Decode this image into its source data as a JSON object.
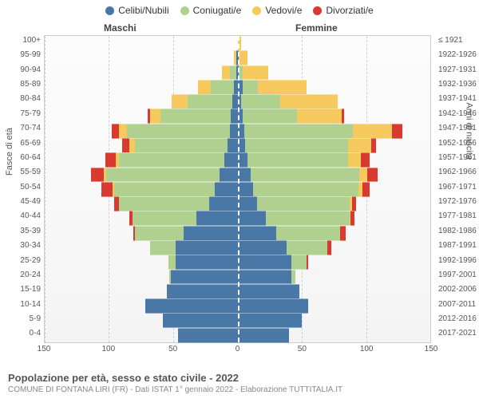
{
  "legend": [
    {
      "label": "Celibi/Nubili",
      "color": "#4a78a6"
    },
    {
      "label": "Coniugati/e",
      "color": "#b0d090"
    },
    {
      "label": "Vedovi/e",
      "color": "#f5c95e"
    },
    {
      "label": "Divorziati/e",
      "color": "#d83a2f"
    }
  ],
  "headers": {
    "left": "Maschi",
    "right": "Femmine"
  },
  "axis": {
    "left_label": "Fasce di età",
    "right_label": "Anni di nascita",
    "xlim": 150,
    "xticks": [
      150,
      100,
      50,
      0,
      50,
      100,
      150
    ]
  },
  "title": "Popolazione per età, sesso e stato civile - 2022",
  "subtitle": "COMUNE DI FONTANA LIRI (FR) - Dati ISTAT 1° gennaio 2022 - Elaborazione TUTTITALIA.IT",
  "colors": {
    "celibi": "#4a78a6",
    "coniugati": "#b0d090",
    "vedovi": "#f5c95e",
    "divorziati": "#d83a2f",
    "grid": "#d0d0d0",
    "zero": "#ffffff"
  },
  "rows": [
    {
      "age": "100+",
      "year": "≤ 1921",
      "m": {
        "c": 0,
        "co": 0,
        "v": 0,
        "d": 0
      },
      "f": {
        "c": 0,
        "co": 0,
        "v": 3,
        "d": 0
      }
    },
    {
      "age": "95-99",
      "year": "1922-1926",
      "m": {
        "c": 1,
        "co": 0,
        "v": 2,
        "d": 0
      },
      "f": {
        "c": 1,
        "co": 0,
        "v": 7,
        "d": 0
      }
    },
    {
      "age": "90-94",
      "year": "1927-1931",
      "m": {
        "c": 1,
        "co": 5,
        "v": 6,
        "d": 0
      },
      "f": {
        "c": 1,
        "co": 3,
        "v": 20,
        "d": 0
      }
    },
    {
      "age": "85-89",
      "year": "1932-1936",
      "m": {
        "c": 3,
        "co": 18,
        "v": 10,
        "d": 0
      },
      "f": {
        "c": 4,
        "co": 12,
        "v": 38,
        "d": 0
      }
    },
    {
      "age": "80-84",
      "year": "1937-1941",
      "m": {
        "c": 4,
        "co": 35,
        "v": 12,
        "d": 0
      },
      "f": {
        "c": 3,
        "co": 30,
        "v": 45,
        "d": 0
      }
    },
    {
      "age": "75-79",
      "year": "1942-1946",
      "m": {
        "c": 5,
        "co": 55,
        "v": 8,
        "d": 2
      },
      "f": {
        "c": 4,
        "co": 42,
        "v": 35,
        "d": 2
      }
    },
    {
      "age": "70-74",
      "year": "1947-1951",
      "m": {
        "c": 6,
        "co": 80,
        "v": 6,
        "d": 6
      },
      "f": {
        "c": 5,
        "co": 85,
        "v": 30,
        "d": 8
      }
    },
    {
      "age": "65-69",
      "year": "1952-1956",
      "m": {
        "c": 8,
        "co": 72,
        "v": 4,
        "d": 6
      },
      "f": {
        "c": 6,
        "co": 80,
        "v": 18,
        "d": 4
      }
    },
    {
      "age": "60-64",
      "year": "1957-1961",
      "m": {
        "c": 10,
        "co": 82,
        "v": 3,
        "d": 8
      },
      "f": {
        "c": 8,
        "co": 78,
        "v": 10,
        "d": 7
      }
    },
    {
      "age": "55-59",
      "year": "1962-1966",
      "m": {
        "c": 14,
        "co": 88,
        "v": 2,
        "d": 10
      },
      "f": {
        "c": 10,
        "co": 85,
        "v": 6,
        "d": 8
      }
    },
    {
      "age": "50-54",
      "year": "1967-1971",
      "m": {
        "c": 18,
        "co": 78,
        "v": 1,
        "d": 9
      },
      "f": {
        "c": 12,
        "co": 82,
        "v": 3,
        "d": 6
      }
    },
    {
      "age": "45-49",
      "year": "1972-1976",
      "m": {
        "c": 22,
        "co": 70,
        "v": 0,
        "d": 4
      },
      "f": {
        "c": 15,
        "co": 72,
        "v": 2,
        "d": 3
      }
    },
    {
      "age": "40-44",
      "year": "1977-1981",
      "m": {
        "c": 32,
        "co": 50,
        "v": 0,
        "d": 2
      },
      "f": {
        "c": 22,
        "co": 65,
        "v": 1,
        "d": 3
      }
    },
    {
      "age": "35-39",
      "year": "1982-1986",
      "m": {
        "c": 42,
        "co": 38,
        "v": 0,
        "d": 1
      },
      "f": {
        "c": 30,
        "co": 50,
        "v": 0,
        "d": 4
      }
    },
    {
      "age": "30-34",
      "year": "1987-1991",
      "m": {
        "c": 48,
        "co": 20,
        "v": 0,
        "d": 0
      },
      "f": {
        "c": 38,
        "co": 32,
        "v": 0,
        "d": 3
      }
    },
    {
      "age": "25-29",
      "year": "1992-1996",
      "m": {
        "c": 48,
        "co": 6,
        "v": 0,
        "d": 0
      },
      "f": {
        "c": 42,
        "co": 12,
        "v": 0,
        "d": 1
      }
    },
    {
      "age": "20-24",
      "year": "1997-2001",
      "m": {
        "c": 52,
        "co": 1,
        "v": 0,
        "d": 0
      },
      "f": {
        "c": 42,
        "co": 3,
        "v": 0,
        "d": 0
      }
    },
    {
      "age": "15-19",
      "year": "2002-2006",
      "m": {
        "c": 55,
        "co": 0,
        "v": 0,
        "d": 0
      },
      "f": {
        "c": 48,
        "co": 0,
        "v": 0,
        "d": 0
      }
    },
    {
      "age": "10-14",
      "year": "2007-2011",
      "m": {
        "c": 72,
        "co": 0,
        "v": 0,
        "d": 0
      },
      "f": {
        "c": 55,
        "co": 0,
        "v": 0,
        "d": 0
      }
    },
    {
      "age": "5-9",
      "year": "2012-2016",
      "m": {
        "c": 58,
        "co": 0,
        "v": 0,
        "d": 0
      },
      "f": {
        "c": 50,
        "co": 0,
        "v": 0,
        "d": 0
      }
    },
    {
      "age": "0-4",
      "year": "2017-2021",
      "m": {
        "c": 46,
        "co": 0,
        "v": 0,
        "d": 0
      },
      "f": {
        "c": 40,
        "co": 0,
        "v": 0,
        "d": 0
      }
    }
  ]
}
